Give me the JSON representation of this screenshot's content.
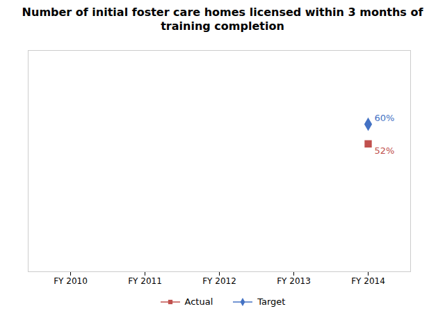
{
  "chart_data": {
    "type": "scatter",
    "title": "Number of initial foster care homes licensed within 3 months of\ntraining completion",
    "categories": [
      "FY 2010",
      "FY 2011",
      "FY 2012",
      "FY 2013",
      "FY 2014"
    ],
    "series": [
      {
        "name": "Actual",
        "color": "#C0504D",
        "marker": "square",
        "values": [
          null,
          null,
          null,
          null,
          52
        ],
        "value_labels": [
          null,
          null,
          null,
          null,
          "52%"
        ]
      },
      {
        "name": "Target",
        "color": "#4472C4",
        "marker": "diamond",
        "values": [
          null,
          null,
          null,
          null,
          60
        ],
        "value_labels": [
          null,
          null,
          null,
          null,
          "60%"
        ]
      }
    ],
    "ylim": [
      0,
      90
    ],
    "data_labels": true,
    "tick_labels": "x",
    "legend": "bottom"
  }
}
